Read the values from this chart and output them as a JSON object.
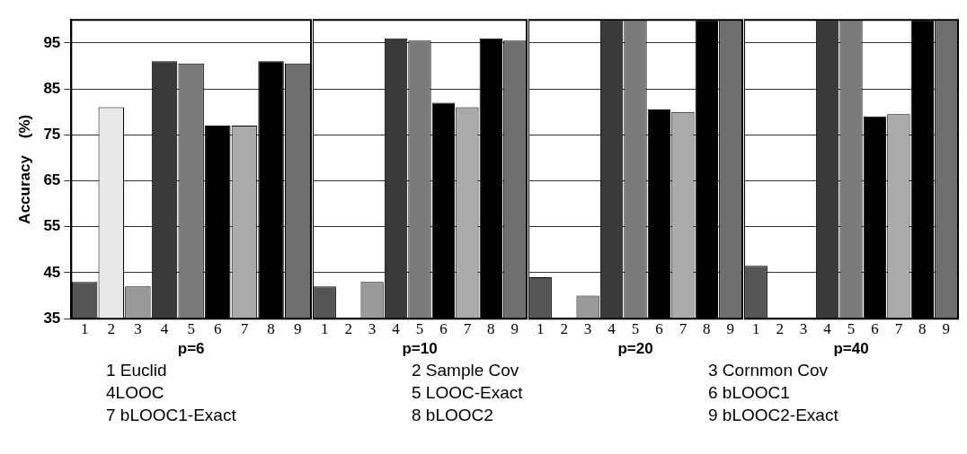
{
  "chart_data": [
    {
      "type": "bar",
      "ylabel": "Accuracy    (%)",
      "xlabel": "p=6",
      "categories": [
        "1",
        "2",
        "3",
        "4",
        "5",
        "6",
        "7",
        "8",
        "9"
      ],
      "values": [
        43,
        81,
        42,
        91,
        90.5,
        77,
        77,
        91,
        90.5
      ],
      "colors": [
        "#555555",
        "#e8e8e8",
        "#999999",
        "#3a3a3a",
        "#7a7a7a",
        "#000000",
        "#aaaaaa",
        "#000000",
        "#6e6e6e"
      ],
      "ylim": [
        35,
        100
      ],
      "yticks": [
        35,
        45,
        55,
        65,
        75,
        85,
        95
      ],
      "grid": "y"
    },
    {
      "type": "bar",
      "xlabel": "p=10",
      "categories": [
        "1",
        "2",
        "3",
        "4",
        "5",
        "6",
        "7",
        "8",
        "9"
      ],
      "values": [
        42,
        null,
        43,
        96,
        95.5,
        82,
        81,
        96,
        95.5
      ],
      "colors": [
        "#555555",
        "#e8e8e8",
        "#999999",
        "#3a3a3a",
        "#7a7a7a",
        "#000000",
        "#aaaaaa",
        "#000000",
        "#6e6e6e"
      ],
      "ylim": [
        35,
        100
      ],
      "yticks": [
        35,
        45,
        55,
        65,
        75,
        85,
        95
      ],
      "grid": "y",
      "tick_labels": "x"
    },
    {
      "type": "bar",
      "xlabel": "p=20",
      "categories": [
        "1",
        "2",
        "3",
        "4",
        "5",
        "6",
        "7",
        "8",
        "9"
      ],
      "values": [
        44,
        null,
        40,
        100,
        100,
        80.5,
        80,
        100,
        100
      ],
      "colors": [
        "#555555",
        "#e8e8e8",
        "#999999",
        "#3a3a3a",
        "#7a7a7a",
        "#000000",
        "#aaaaaa",
        "#000000",
        "#6e6e6e"
      ],
      "ylim": [
        35,
        100
      ],
      "yticks": [
        35,
        45,
        55,
        65,
        75,
        85,
        95
      ],
      "grid": "y",
      "tick_labels": "x"
    },
    {
      "type": "bar",
      "xlabel": "p=40",
      "categories": [
        "1",
        "2",
        "3",
        "4",
        "5",
        "6",
        "7",
        "8",
        "9"
      ],
      "values": [
        46.5,
        null,
        null,
        100,
        100,
        79,
        79.5,
        100,
        100
      ],
      "colors": [
        "#555555",
        "#e8e8e8",
        "#999999",
        "#3a3a3a",
        "#7a7a7a",
        "#000000",
        "#aaaaaa",
        "#000000",
        "#6e6e6e"
      ],
      "ylim": [
        35,
        100
      ],
      "yticks": [
        35,
        45,
        55,
        65,
        75,
        85,
        95
      ],
      "grid": "y",
      "tick_labels": "x"
    },
    {
      "type": "other",
      "annotations": [
        "1 Euclid",
        "2 Sample Cov",
        "3 Cornmon Cov",
        "4LOOC",
        "5 LOOC-Exact",
        "6 bLOOC1",
        "7 bLOOC1-Exact",
        "8 bLOOC2",
        "9 bLOOC2-Exact"
      ]
    }
  ]
}
